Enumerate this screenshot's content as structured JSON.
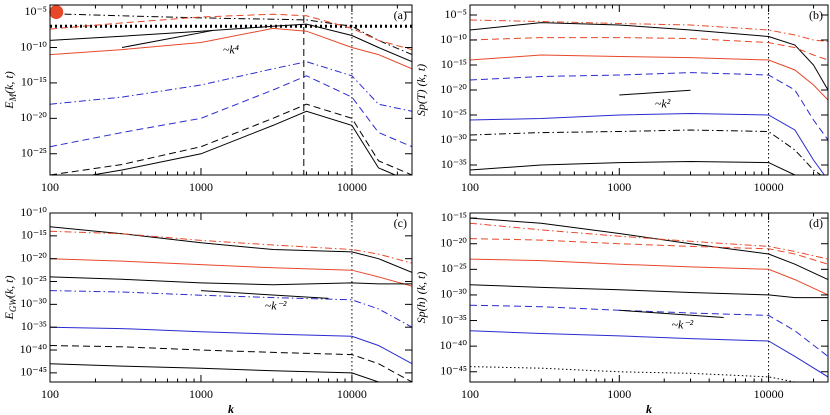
{
  "chart_data": [
    {
      "type": "line",
      "label": "(a)",
      "ylabel": "E",
      "ylabel_sub": "M",
      "ylabel_rest": "(k, t)",
      "xlog": true,
      "ylog": true,
      "xlim": [
        100,
        25000
      ],
      "ylim": [
        1e-28,
        0.0001
      ],
      "xticks": [
        100,
        1000,
        10000
      ],
      "yticks": [
        {
          "value": 1e-05,
          "label": "10⁻⁵"
        },
        {
          "value": 1e-10,
          "label": "10⁻¹⁰"
        },
        {
          "value": 1e-15,
          "label": "10⁻¹⁵"
        },
        {
          "value": 1e-20,
          "label": "10⁻²⁰"
        },
        {
          "value": 1e-25,
          "label": "10⁻²⁵"
        }
      ],
      "x": [
        100,
        300,
        1000,
        3000,
        5000,
        10000,
        15000,
        25000
      ],
      "series": [
        {
          "color": "#000000",
          "dash": "dashdot",
          "values": [
            6e-06,
            3e-06,
            1.5e-06,
            1e-06,
            8e-07,
            1e-07,
            1e-09,
            1e-11
          ]
        },
        {
          "color": "#e8482a",
          "dash": "dashed",
          "values": [
            4e-08,
            3e-07,
            2e-06,
            5e-06,
            3e-06,
            5e-08,
            1e-09,
            5e-11
          ]
        },
        {
          "color": "#e8482a",
          "dash": "solid",
          "values": [
            1e-11,
            5e-11,
            5e-10,
            5e-08,
            2e-08,
            1e-10,
            1e-11,
            1e-13
          ]
        },
        {
          "color": "#000000",
          "dash": "solid",
          "values": [
            1e-09,
            4e-09,
            2e-08,
            1e-07,
            2e-07,
            5e-09,
            1e-10,
            1e-12
          ]
        },
        {
          "color": "#2b2bd0",
          "dash": "dashdot",
          "values": [
            1e-18,
            1e-17,
            5e-16,
            1e-13,
            1e-12,
            1e-14,
            1e-18,
            1e-19
          ]
        },
        {
          "color": "#2b2bd0",
          "dash": "dashed",
          "values": [
            1e-24,
            1e-22,
            1e-20,
            1e-16,
            1e-14,
            1e-17,
            1e-22,
            1e-24
          ]
        },
        {
          "color": "#000000",
          "dash": "dashed",
          "values": [
            1e-28,
            3e-27,
            1e-24,
            1e-20,
            1e-18,
            1e-20,
            1e-26,
            1e-28
          ]
        },
        {
          "color": "#000000",
          "dash": "solid",
          "values": [
            1e-29,
            5e-28,
            1e-25,
            1e-21,
            1e-19,
            1e-21,
            1e-27,
            1e-29
          ]
        }
      ],
      "guide": {
        "text": "~k⁴",
        "x": [
          300,
          1200
        ],
        "y": [
          1e-10,
          2.56e-08
        ]
      },
      "vlines": [
        {
          "x": 4800,
          "dash": "dashed"
        },
        {
          "x": 10000,
          "dash": "dotted"
        }
      ],
      "hlines": [
        {
          "y": 1e-07,
          "dash": "dotted"
        }
      ],
      "marker": {
        "x": 110,
        "y": 1e-05,
        "color": "#e8482a"
      }
    },
    {
      "type": "line",
      "label": "(b)",
      "ylabel": "Sp(T) (k, t)",
      "xlog": true,
      "ylog": true,
      "xlim": [
        100,
        25000
      ],
      "ylim": [
        1e-37,
        0.001
      ],
      "xticks": [
        100,
        1000,
        10000
      ],
      "yticks": [
        {
          "value": 1e-05,
          "label": "10⁻⁵"
        },
        {
          "value": 1e-10,
          "label": "10⁻¹⁰"
        },
        {
          "value": 1e-15,
          "label": "10⁻¹⁵"
        },
        {
          "value": 1e-20,
          "label": "10⁻²⁰"
        },
        {
          "value": 1e-25,
          "label": "10⁻²⁵"
        },
        {
          "value": 1e-30,
          "label": "10⁻³⁰"
        },
        {
          "value": 1e-35,
          "label": "10⁻³⁵"
        }
      ],
      "x": [
        100,
        300,
        1000,
        3000,
        10000,
        15000,
        20000,
        25000
      ],
      "series": [
        {
          "color": "#000000",
          "dash": "solid",
          "values": [
            1e-08,
            3e-07,
            1e-07,
            1e-08,
            5e-10,
            1e-11,
            1e-15,
            1e-20
          ]
        },
        {
          "color": "#e8482a",
          "dash": "dashdot",
          "values": [
            1e-06,
            5e-07,
            2e-07,
            1e-07,
            1e-08,
            1e-09,
            1e-10,
            5e-11
          ]
        },
        {
          "color": "#e8482a",
          "dash": "dashed",
          "values": [
            1e-10,
            3e-10,
            3e-10,
            2e-10,
            3e-11,
            3e-12,
            1e-13,
            1e-14
          ]
        },
        {
          "color": "#e8482a",
          "dash": "solid",
          "values": [
            1e-14,
            1e-13,
            5e-14,
            3e-14,
            1e-14,
            1e-16,
            1e-19,
            1e-22
          ]
        },
        {
          "color": "#2b2bd0",
          "dash": "dashed",
          "values": [
            1e-18,
            5e-18,
            1e-17,
            3e-17,
            1e-17,
            1e-20,
            1e-26,
            1e-30
          ]
        },
        {
          "color": "#2b2bd0",
          "dash": "solid",
          "values": [
            1e-26,
            2e-26,
            1e-25,
            2e-25,
            1e-25,
            1e-28,
            1e-34,
            1e-38
          ]
        },
        {
          "color": "#000000",
          "dash": "dashdot",
          "values": [
            1e-29,
            3e-29,
            5e-29,
            1e-28,
            5e-29,
            1e-32,
            1e-36,
            1e-38
          ]
        },
        {
          "color": "#000000",
          "dash": "solid",
          "values": [
            1e-36,
            1e-35,
            3e-35,
            5e-35,
            3e-35,
            1e-37,
            1e-38,
            1e-38
          ]
        }
      ],
      "guide": {
        "text": "~k²",
        "x": [
          1000,
          3000
        ],
        "y": [
          1e-21,
          9e-21
        ]
      },
      "vlines": [
        {
          "x": 10000,
          "dash": "dotted"
        }
      ]
    },
    {
      "type": "line",
      "label": "(c)",
      "ylabel": "E",
      "ylabel_sub": "GW",
      "ylabel_rest": "(k, t)",
      "xlabel": "k",
      "xlog": true,
      "ylog": true,
      "xlim": [
        100,
        25000
      ],
      "ylim": [
        1e-47,
        1e-10
      ],
      "xticks": [
        100,
        1000,
        10000
      ],
      "yticks": [
        {
          "value": 1e-10,
          "label": "10⁻¹⁰"
        },
        {
          "value": 1e-15,
          "label": "10⁻¹⁵"
        },
        {
          "value": 1e-20,
          "label": "10⁻²⁰"
        },
        {
          "value": 1e-25,
          "label": "10⁻²⁵"
        },
        {
          "value": 1e-30,
          "label": "10⁻³⁰"
        },
        {
          "value": 1e-35,
          "label": "10⁻³⁵"
        },
        {
          "value": 1e-40,
          "label": "10⁻⁴⁰"
        },
        {
          "value": 1e-45,
          "label": "10⁻⁴⁵"
        }
      ],
      "x": [
        100,
        300,
        1000,
        3000,
        10000,
        15000,
        25000
      ],
      "series": [
        {
          "color": "#000000",
          "dash": "solid",
          "values": [
            1e-13,
            3e-15,
            3e-17,
            1e-18,
            3e-19,
            1e-20,
            1e-23
          ]
        },
        {
          "color": "#e8482a",
          "dash": "dashdot",
          "values": [
            1e-14,
            3e-15,
            1e-16,
            1e-17,
            1e-18,
            1e-19,
            1e-21
          ]
        },
        {
          "color": "#e8482a",
          "dash": "solid",
          "values": [
            1e-20,
            3e-21,
            5e-22,
            1e-22,
            3e-23,
            1e-24,
            1e-26
          ]
        },
        {
          "color": "#000000",
          "dash": "solid",
          "values": [
            1e-24,
            3e-25,
            5e-26,
            2e-26,
            5e-26,
            3e-26,
            3e-26
          ]
        },
        {
          "color": "#2b2bd0",
          "dash": "dashdot",
          "values": [
            1e-27,
            5e-28,
            1e-28,
            3e-29,
            1e-29,
            1e-31,
            1e-35
          ]
        },
        {
          "color": "#2b2bd0",
          "dash": "solid",
          "values": [
            1e-35,
            5e-36,
            1e-36,
            3e-37,
            1e-37,
            1e-39,
            1e-43
          ]
        },
        {
          "color": "#000000",
          "dash": "dashed",
          "values": [
            1e-39,
            5e-40,
            1e-40,
            3e-41,
            1e-41,
            1e-43,
            1e-47
          ]
        },
        {
          "color": "#000000",
          "dash": "solid",
          "values": [
            1e-43,
            3e-44,
            1e-44,
            3e-45,
            1e-45,
            1e-47,
            1e-48
          ]
        }
      ],
      "guide": {
        "text": "~k⁻²",
        "x": [
          1000,
          7000
        ],
        "y": [
          1e-27,
          2e-29
        ]
      },
      "vlines": [
        {
          "x": 10000,
          "dash": "dotted"
        }
      ]
    },
    {
      "type": "line",
      "label": "(d)",
      "ylabel": "Sp(h) (k, t)",
      "xlabel": "k",
      "xlog": true,
      "ylog": true,
      "xlim": [
        100,
        25000
      ],
      "ylim": [
        1e-47,
        1e-14
      ],
      "xticks": [
        100,
        1000,
        10000
      ],
      "yticks": [
        {
          "value": 1e-15,
          "label": "10⁻¹⁵"
        },
        {
          "value": 1e-20,
          "label": "10⁻²⁰"
        },
        {
          "value": 1e-25,
          "label": "10⁻²⁵"
        },
        {
          "value": 1e-30,
          "label": "10⁻³⁰"
        },
        {
          "value": 1e-35,
          "label": "10⁻³⁵"
        },
        {
          "value": 1e-40,
          "label": "10⁻⁴⁰"
        },
        {
          "value": 1e-45,
          "label": "10⁻⁴⁵"
        }
      ],
      "x": [
        100,
        300,
        1000,
        3000,
        10000,
        15000,
        25000
      ],
      "series": [
        {
          "color": "#000000",
          "dash": "solid",
          "values": [
            1e-15,
            1e-16,
            1e-18,
            1e-20,
            1e-22,
            1e-24,
            1e-27
          ]
        },
        {
          "color": "#e8482a",
          "dash": "dashdot",
          "values": [
            1e-16,
            5e-18,
            3e-19,
            3e-20,
            3e-21,
            3e-22,
            1e-23
          ]
        },
        {
          "color": "#e8482a",
          "dash": "dashed",
          "values": [
            1e-19,
            5e-20,
            1e-20,
            3e-21,
            1e-21,
            1e-22,
            1e-24
          ]
        },
        {
          "color": "#e8482a",
          "dash": "solid",
          "values": [
            1e-23,
            5e-24,
            1e-24,
            3e-25,
            1e-25,
            1e-27,
            1e-30
          ]
        },
        {
          "color": "#000000",
          "dash": "solid",
          "values": [
            1e-28,
            3e-29,
            1e-29,
            3e-30,
            1e-30,
            3e-31,
            3e-31
          ]
        },
        {
          "color": "#2b2bd0",
          "dash": "dashed",
          "values": [
            1e-32,
            5e-33,
            1e-33,
            3e-34,
            1e-34,
            1e-37,
            1e-42
          ]
        },
        {
          "color": "#2b2bd0",
          "dash": "solid",
          "values": [
            1e-37,
            3e-38,
            1e-38,
            3e-39,
            1e-39,
            1e-42,
            1e-46
          ]
        },
        {
          "color": "#000000",
          "dash": "dotted",
          "values": [
            1e-44,
            5e-45,
            1e-45,
            5e-46,
            1e-46,
            1e-47,
            1e-48
          ]
        }
      ],
      "guide": {
        "text": "~k⁻²",
        "x": [
          1000,
          5000
        ],
        "y": [
          1e-33,
          4e-35
        ]
      },
      "vlines": [
        {
          "x": 10000,
          "dash": "dotted"
        }
      ]
    }
  ]
}
